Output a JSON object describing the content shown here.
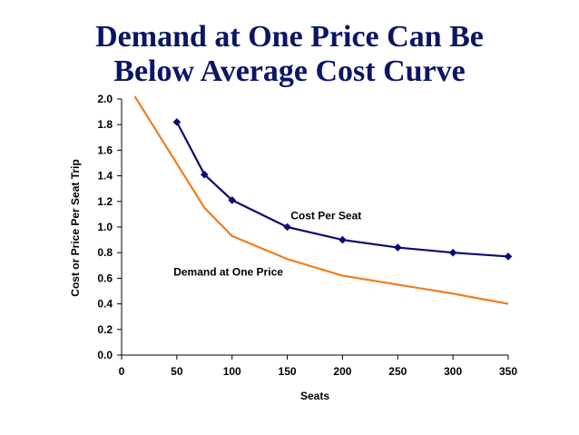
{
  "chart_data": {
    "type": "line",
    "title_line1": "Demand at One Price Can Be",
    "title_line2": "Below Average Cost Curve",
    "xlabel": "Seats",
    "ylabel": "Cost or Price Per Seat Trip",
    "xlim": [
      0,
      350
    ],
    "ylim": [
      0,
      2.0
    ],
    "x_ticks": [
      "0",
      "50",
      "100",
      "150",
      "200",
      "250",
      "300",
      "350"
    ],
    "y_ticks": [
      "0.0",
      "0.2",
      "0.4",
      "0.6",
      "0.8",
      "1.0",
      "1.2",
      "1.4",
      "1.6",
      "1.8",
      "2.0"
    ],
    "grid": false,
    "series": [
      {
        "name": "Cost Per Seat",
        "color": "#0a0a78",
        "marker": "diamond",
        "x": [
          50,
          75,
          100,
          150,
          200,
          250,
          300,
          350
        ],
        "y": [
          1.82,
          1.41,
          1.21,
          1.0,
          0.9,
          0.84,
          0.8,
          0.77
        ]
      },
      {
        "name": "Demand at One Price",
        "color": "#f07c1c",
        "marker": "none",
        "x": [
          12,
          75,
          100,
          150,
          200,
          250,
          300,
          350
        ],
        "y": [
          2.02,
          1.15,
          0.93,
          0.75,
          0.62,
          0.55,
          0.48,
          0.4
        ]
      }
    ],
    "annotations": [
      {
        "text": "Cost Per Seat",
        "x": 153,
        "y": 1.06
      },
      {
        "text": "Demand at One Price",
        "x": 47,
        "y": 0.62
      }
    ]
  }
}
